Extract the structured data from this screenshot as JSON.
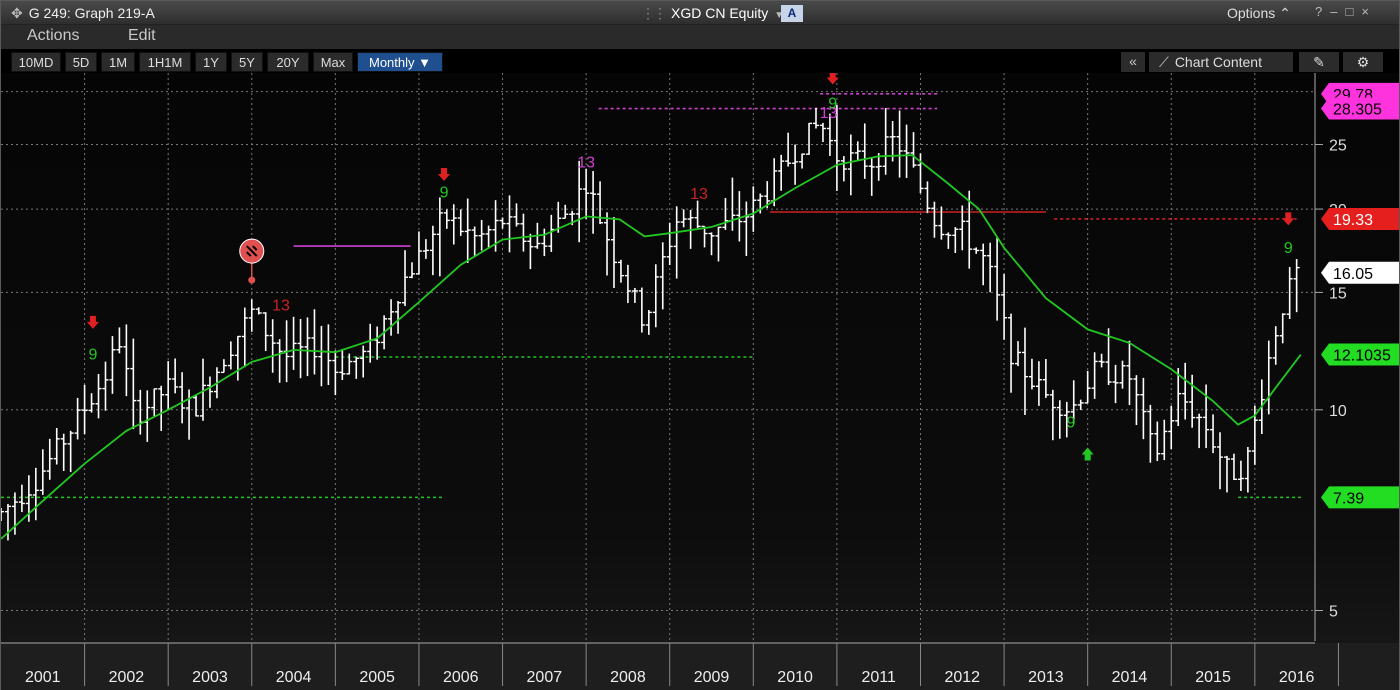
{
  "window": {
    "title": "G 249: Graph 219-A",
    "ticker": "XGD CN Equity",
    "a_badge": "A",
    "options_label": "Options",
    "window_controls": [
      "?",
      "–",
      "□",
      "×"
    ]
  },
  "menu": {
    "actions": "Actions",
    "edit": "Edit"
  },
  "toolbar": {
    "ranges": [
      "10MD",
      "5D",
      "1M",
      "1H1M",
      "1Y",
      "5Y",
      "20Y",
      "Max"
    ],
    "period": "Monthly ▼",
    "collapse": "«",
    "chart_content": "Chart Content"
  },
  "icons": [
    "move-icon",
    "grip-icon",
    "dropdown-icon",
    "chart-content-icon",
    "draw-tool-icon",
    "gear-icon",
    "collapse-icon"
  ],
  "colors": {
    "background": "#000000",
    "price_bars": "#ffffff",
    "moving_average": "#22c822",
    "sell_signal": "#e02020",
    "buy_signal": "#22c822",
    "count_13": "#d040d0",
    "resistance_line": "#cc2222",
    "support_line": "#22c822",
    "magenta_line": "#d040d0",
    "active_button": "#1f4f8f"
  },
  "chart_data": {
    "type": "ohlc",
    "period": "Monthly",
    "y_scale": "log",
    "ylim": [
      4.5,
      32
    ],
    "y_ticks": [
      "5",
      "10",
      "15",
      "20",
      "25"
    ],
    "x_ticks": [
      "2001",
      "2002",
      "2003",
      "2004",
      "2005",
      "2006",
      "2007",
      "2008",
      "2009",
      "2010",
      "2011",
      "2012",
      "2013",
      "2014",
      "2015",
      "2016"
    ],
    "x_range": [
      2001.0,
      2016.6
    ],
    "grid": true,
    "price_key_points": [
      {
        "t": 2001.0,
        "v": 7.0
      },
      {
        "t": 2001.4,
        "v": 7.8
      },
      {
        "t": 2001.8,
        "v": 9.2
      },
      {
        "t": 2002.3,
        "v": 11.5
      },
      {
        "t": 2002.4,
        "v": 13.0
      },
      {
        "t": 2002.6,
        "v": 9.8
      },
      {
        "t": 2003.0,
        "v": 10.8
      },
      {
        "t": 2003.3,
        "v": 10.0
      },
      {
        "t": 2003.7,
        "v": 12.2
      },
      {
        "t": 2004.0,
        "v": 14.0
      },
      {
        "t": 2004.4,
        "v": 12.0
      },
      {
        "t": 2004.8,
        "v": 12.5
      },
      {
        "t": 2005.0,
        "v": 11.5
      },
      {
        "t": 2005.4,
        "v": 12.2
      },
      {
        "t": 2005.8,
        "v": 15.5
      },
      {
        "t": 2006.3,
        "v": 19.5
      },
      {
        "t": 2006.7,
        "v": 18.0
      },
      {
        "t": 2007.0,
        "v": 19.2
      },
      {
        "t": 2007.4,
        "v": 17.5
      },
      {
        "t": 2007.8,
        "v": 20.0
      },
      {
        "t": 2008.0,
        "v": 22.0
      },
      {
        "t": 2008.3,
        "v": 17.5
      },
      {
        "t": 2008.7,
        "v": 13.5
      },
      {
        "t": 2008.9,
        "v": 16.5
      },
      {
        "t": 2009.1,
        "v": 19.5
      },
      {
        "t": 2009.5,
        "v": 18.5
      },
      {
        "t": 2009.9,
        "v": 19.5
      },
      {
        "t": 2010.2,
        "v": 21.5
      },
      {
        "t": 2010.5,
        "v": 24.5
      },
      {
        "t": 2010.8,
        "v": 27.0
      },
      {
        "t": 2011.0,
        "v": 24.0
      },
      {
        "t": 2011.4,
        "v": 23.5
      },
      {
        "t": 2011.7,
        "v": 25.5
      },
      {
        "t": 2011.9,
        "v": 23.0
      },
      {
        "t": 2012.2,
        "v": 19.0
      },
      {
        "t": 2012.5,
        "v": 18.5
      },
      {
        "t": 2012.8,
        "v": 16.5
      },
      {
        "t": 2013.1,
        "v": 12.0
      },
      {
        "t": 2013.5,
        "v": 10.5
      },
      {
        "t": 2013.8,
        "v": 10.0
      },
      {
        "t": 2014.1,
        "v": 11.5
      },
      {
        "t": 2014.5,
        "v": 11.2
      },
      {
        "t": 2014.8,
        "v": 8.5
      },
      {
        "t": 2015.1,
        "v": 10.5
      },
      {
        "t": 2015.4,
        "v": 9.5
      },
      {
        "t": 2015.7,
        "v": 8.0
      },
      {
        "t": 2015.9,
        "v": 8.3
      },
      {
        "t": 2016.1,
        "v": 11.0
      },
      {
        "t": 2016.3,
        "v": 14.0
      },
      {
        "t": 2016.5,
        "v": 16.05
      }
    ],
    "moving_average": [
      {
        "t": 2001.0,
        "v": 6.4
      },
      {
        "t": 2001.5,
        "v": 7.3
      },
      {
        "t": 2002.0,
        "v": 8.3
      },
      {
        "t": 2002.5,
        "v": 9.3
      },
      {
        "t": 2003.0,
        "v": 10.0
      },
      {
        "t": 2003.5,
        "v": 10.8
      },
      {
        "t": 2004.0,
        "v": 11.8
      },
      {
        "t": 2004.5,
        "v": 12.3
      },
      {
        "t": 2005.0,
        "v": 12.2
      },
      {
        "t": 2005.5,
        "v": 12.8
      },
      {
        "t": 2006.0,
        "v": 14.5
      },
      {
        "t": 2006.5,
        "v": 16.5
      },
      {
        "t": 2007.0,
        "v": 18.0
      },
      {
        "t": 2007.5,
        "v": 18.3
      },
      {
        "t": 2008.0,
        "v": 19.5
      },
      {
        "t": 2008.4,
        "v": 19.3
      },
      {
        "t": 2008.7,
        "v": 18.2
      },
      {
        "t": 2009.0,
        "v": 18.4
      },
      {
        "t": 2009.5,
        "v": 18.8
      },
      {
        "t": 2010.0,
        "v": 19.7
      },
      {
        "t": 2010.5,
        "v": 21.5
      },
      {
        "t": 2011.0,
        "v": 23.3
      },
      {
        "t": 2011.5,
        "v": 24.0
      },
      {
        "t": 2011.9,
        "v": 24.1
      },
      {
        "t": 2012.3,
        "v": 22.0
      },
      {
        "t": 2012.7,
        "v": 20.0
      },
      {
        "t": 2013.0,
        "v": 17.5
      },
      {
        "t": 2013.5,
        "v": 14.7
      },
      {
        "t": 2014.0,
        "v": 13.2
      },
      {
        "t": 2014.5,
        "v": 12.6
      },
      {
        "t": 2015.0,
        "v": 11.5
      },
      {
        "t": 2015.5,
        "v": 10.3
      },
      {
        "t": 2015.8,
        "v": 9.5
      },
      {
        "t": 2016.0,
        "v": 9.8
      },
      {
        "t": 2016.3,
        "v": 11.0
      },
      {
        "t": 2016.55,
        "v": 12.1
      }
    ],
    "price_labels": [
      {
        "text": "29.78",
        "v": 29.78,
        "bg": "#ff33dd",
        "fg": "#000000"
      },
      {
        "text": "28.305",
        "v": 28.305,
        "bg": "#ff33dd",
        "fg": "#000000"
      },
      {
        "text": "19.33",
        "v": 19.33,
        "bg": "#e51e1e",
        "fg": "#ffffff"
      },
      {
        "text": "16.05",
        "v": 16.05,
        "bg": "#ffffff",
        "fg": "#000000"
      },
      {
        "text": "12.1035",
        "v": 12.1035,
        "bg": "#22dd22",
        "fg": "#000000"
      },
      {
        "text": "7.39",
        "v": 7.39,
        "bg": "#22dd22",
        "fg": "#000000"
      }
    ],
    "level_lines": [
      {
        "v": 29.78,
        "t0": 2010.8,
        "t1": 2012.2,
        "color": "#d040d0",
        "dash": true
      },
      {
        "v": 28.305,
        "t0": 2008.15,
        "t1": 2012.2,
        "color": "#d040d0",
        "dash": true
      },
      {
        "v": 19.8,
        "t0": 2010.2,
        "t1": 2013.5,
        "color": "#cc2222",
        "dash": false
      },
      {
        "v": 19.33,
        "t0": 2013.6,
        "t1": 2016.5,
        "color": "#cc2222",
        "dash": true
      },
      {
        "v": 17.6,
        "t0": 2004.5,
        "t1": 2005.9,
        "color": "#d040d0",
        "dash": false
      },
      {
        "v": 12.0,
        "t0": 2005.0,
        "t1": 2010.0,
        "color": "#22c822",
        "dash": true
      },
      {
        "v": 7.39,
        "t0": 2001.0,
        "t1": 2006.3,
        "color": "#22c822",
        "dash": true
      },
      {
        "v": 7.39,
        "t0": 2015.8,
        "t1": 2016.55,
        "color": "#22c822",
        "dash": true
      }
    ],
    "annotations": [
      {
        "text": "9",
        "t": 2002.1,
        "v": 11.9,
        "color": "#22c822"
      },
      {
        "text": "13",
        "t": 2004.35,
        "v": 14.1,
        "color": "#cc2222"
      },
      {
        "text": "9",
        "t": 2006.3,
        "v": 20.8,
        "color": "#22c822"
      },
      {
        "text": "13",
        "t": 2008.0,
        "v": 23.1,
        "color": "#d040d0"
      },
      {
        "text": "13",
        "t": 2009.35,
        "v": 20.7,
        "color": "#cc2222"
      },
      {
        "text": "13",
        "t": 2010.9,
        "v": 27.4,
        "color": "#d040d0"
      },
      {
        "text": "9",
        "t": 2010.95,
        "v": 28.3,
        "color": "#22c822"
      },
      {
        "text": "9",
        "t": 2013.8,
        "v": 9.4,
        "color": "#22c822"
      },
      {
        "text": "9",
        "t": 2016.4,
        "v": 17.2,
        "color": "#22c822"
      }
    ],
    "arrows": [
      {
        "dir": "down",
        "t": 2002.1,
        "v": 13.5,
        "color": "#e02020"
      },
      {
        "dir": "down",
        "t": 2006.3,
        "v": 22.5,
        "color": "#e02020"
      },
      {
        "dir": "down",
        "t": 2010.95,
        "v": 31.4,
        "color": "#e02020"
      },
      {
        "dir": "up",
        "t": 2014.0,
        "v": 8.6,
        "color": "#22c822"
      },
      {
        "dir": "down",
        "t": 2016.4,
        "v": 19.3,
        "color": "#e02020"
      }
    ],
    "event_marker": {
      "t": 2004.0,
      "v": 17.3
    }
  }
}
